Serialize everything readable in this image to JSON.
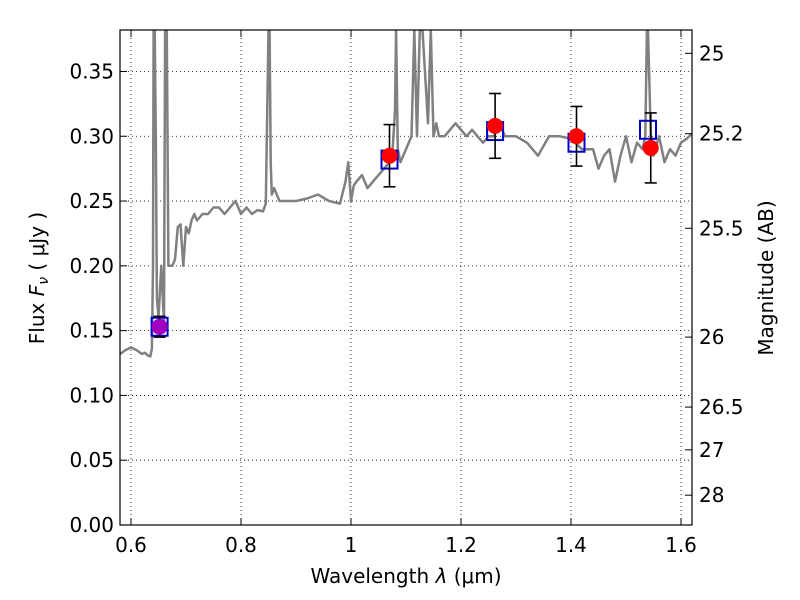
{
  "chart_data": {
    "type": "scatter",
    "xlabel_text": "Wavelength",
    "xlabel_symbol": "λ",
    "xlabel_unit": "(μm)",
    "ylabel_text": "Flux",
    "ylabel_symbol": "F",
    "ylabel_sub": "ν",
    "ylabel_unit": "( μJy )",
    "y2label": "Magnitude (AB)",
    "xlim": [
      0.58,
      1.62
    ],
    "ylim": [
      0.0,
      0.382
    ],
    "grid": true,
    "x_ticks": [
      {
        "value": 0.6,
        "label": "0.6"
      },
      {
        "value": 0.8,
        "label": "0.8"
      },
      {
        "value": 1.0,
        "label": "1"
      },
      {
        "value": 1.2,
        "label": "1.2"
      },
      {
        "value": 1.4,
        "label": "1.4"
      },
      {
        "value": 1.6,
        "label": "1.6"
      }
    ],
    "y_ticks": [
      {
        "value": 0.0,
        "label": "0.00"
      },
      {
        "value": 0.05,
        "label": "0.05"
      },
      {
        "value": 0.1,
        "label": "0.10"
      },
      {
        "value": 0.15,
        "label": "0.15"
      },
      {
        "value": 0.2,
        "label": "0.20"
      },
      {
        "value": 0.25,
        "label": "0.25"
      },
      {
        "value": 0.3,
        "label": "0.30"
      },
      {
        "value": 0.35,
        "label": "0.35"
      }
    ],
    "y2_ticks": [
      {
        "flux": 0.364,
        "label": "25"
      },
      {
        "flux": 0.302,
        "label": "25.2"
      },
      {
        "flux": 0.229,
        "label": "25.5"
      },
      {
        "flux": 0.145,
        "label": "26"
      },
      {
        "flux": 0.091,
        "label": "26.5"
      },
      {
        "flux": 0.058,
        "label": "27"
      },
      {
        "flux": 0.023,
        "label": "28"
      }
    ],
    "series": [
      {
        "name": "model spectrum",
        "kind": "line",
        "color": "#808080",
        "x": [
          0.58,
          0.59,
          0.6,
          0.61,
          0.62,
          0.625,
          0.63,
          0.635,
          0.638,
          0.64,
          0.641,
          0.642,
          0.643,
          0.645,
          0.647,
          0.65,
          0.655,
          0.66,
          0.662,
          0.665,
          0.668,
          0.67,
          0.675,
          0.68,
          0.685,
          0.69,
          0.695,
          0.7,
          0.705,
          0.71,
          0.715,
          0.72,
          0.73,
          0.74,
          0.75,
          0.76,
          0.77,
          0.78,
          0.79,
          0.8,
          0.81,
          0.82,
          0.83,
          0.84,
          0.845,
          0.85,
          0.852,
          0.854,
          0.856,
          0.86,
          0.87,
          0.88,
          0.9,
          0.92,
          0.94,
          0.96,
          0.98,
          0.99,
          0.995,
          1.0,
          1.005,
          1.01,
          1.02,
          1.03,
          1.04,
          1.05,
          1.06,
          1.07,
          1.075,
          1.08,
          1.082,
          1.085,
          1.09,
          1.1,
          1.11,
          1.115,
          1.12,
          1.125,
          1.13,
          1.14,
          1.145,
          1.15,
          1.155,
          1.16,
          1.17,
          1.18,
          1.19,
          1.2,
          1.21,
          1.22,
          1.23,
          1.24,
          1.25,
          1.26,
          1.27,
          1.28,
          1.3,
          1.32,
          1.34,
          1.36,
          1.38,
          1.4,
          1.42,
          1.44,
          1.45,
          1.46,
          1.47,
          1.48,
          1.49,
          1.5,
          1.51,
          1.52,
          1.53,
          1.535,
          1.538,
          1.54,
          1.545,
          1.55,
          1.56,
          1.57,
          1.58,
          1.59,
          1.6,
          1.61,
          1.62
        ],
        "y": [
          0.132,
          0.135,
          0.137,
          0.135,
          0.132,
          0.133,
          0.131,
          0.13,
          0.136,
          0.2,
          0.382,
          0.382,
          0.382,
          0.3,
          0.175,
          0.16,
          0.2,
          0.155,
          0.382,
          0.382,
          0.2,
          0.2,
          0.2,
          0.205,
          0.23,
          0.232,
          0.2,
          0.23,
          0.225,
          0.235,
          0.24,
          0.235,
          0.24,
          0.24,
          0.245,
          0.245,
          0.24,
          0.245,
          0.25,
          0.24,
          0.245,
          0.24,
          0.243,
          0.242,
          0.248,
          0.382,
          0.382,
          0.28,
          0.255,
          0.26,
          0.25,
          0.25,
          0.25,
          0.252,
          0.255,
          0.25,
          0.248,
          0.265,
          0.28,
          0.25,
          0.262,
          0.265,
          0.27,
          0.26,
          0.265,
          0.27,
          0.275,
          0.28,
          0.285,
          0.32,
          0.382,
          0.29,
          0.28,
          0.29,
          0.3,
          0.382,
          0.3,
          0.382,
          0.382,
          0.31,
          0.382,
          0.3,
          0.31,
          0.3,
          0.3,
          0.305,
          0.31,
          0.305,
          0.3,
          0.305,
          0.3,
          0.295,
          0.3,
          0.3,
          0.31,
          0.3,
          0.3,
          0.295,
          0.285,
          0.3,
          0.3,
          0.298,
          0.29,
          0.29,
          0.275,
          0.285,
          0.29,
          0.265,
          0.285,
          0.3,
          0.28,
          0.295,
          0.29,
          0.3,
          0.382,
          0.382,
          0.3,
          0.285,
          0.3,
          0.28,
          0.29,
          0.285,
          0.295,
          0.298,
          0.302
        ]
      },
      {
        "name": "model photometry",
        "kind": "box",
        "color": "#0000cc",
        "x": [
          0.652,
          1.07,
          1.262,
          1.41,
          1.54
        ],
        "y": [
          0.153,
          0.282,
          0.304,
          0.295,
          0.305
        ]
      },
      {
        "name": "observed photometry",
        "kind": "circle",
        "x": [
          0.652,
          1.07,
          1.262,
          1.41,
          1.545
        ],
        "y": [
          0.153,
          0.285,
          0.308,
          0.3,
          0.291
        ],
        "yerr": [
          0.008,
          0.024,
          0.025,
          0.023,
          0.027
        ],
        "colors": [
          "#a000c0",
          "#ff0000",
          "#ff0000",
          "#ff0000",
          "#ff0000"
        ]
      }
    ]
  }
}
